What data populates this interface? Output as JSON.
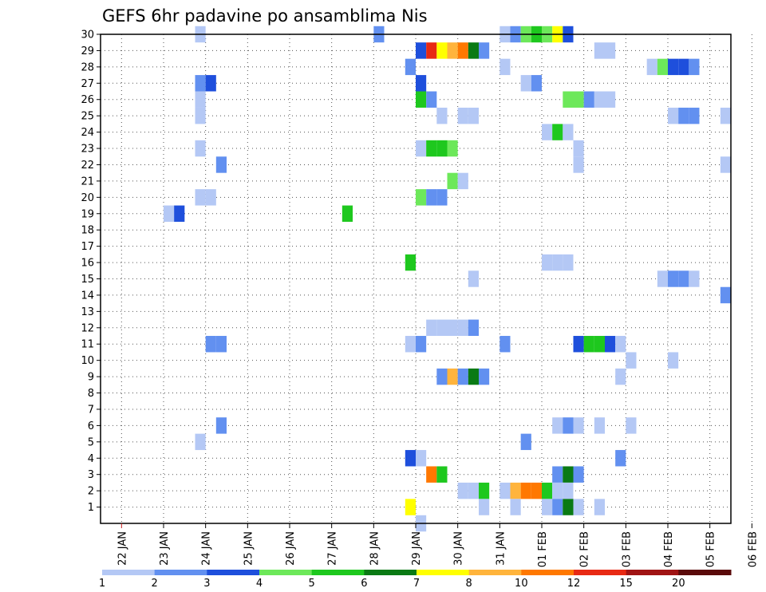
{
  "chart_data": {
    "type": "heatmap",
    "title": "GEFS 6hr padavine po ansamblima Nis",
    "y_ticks": [
      "1",
      "2",
      "3",
      "4",
      "5",
      "6",
      "7",
      "8",
      "9",
      "10",
      "11",
      "12",
      "13",
      "14",
      "15",
      "16",
      "17",
      "18",
      "19",
      "20",
      "21",
      "22",
      "23",
      "24",
      "25",
      "26",
      "27",
      "28",
      "29",
      "30"
    ],
    "ylim": [
      0,
      30
    ],
    "x_ticks": [
      "22 JAN",
      "23 JAN",
      "24 JAN",
      "25 JAN",
      "26 JAN",
      "27 JAN",
      "28 JAN",
      "29 JAN",
      "30 JAN",
      "31 JAN",
      "01 FEB",
      "02 FEB",
      "03 FEB",
      "04 FEB",
      "05 FEB",
      "06 FEB"
    ],
    "x_step_hours": 6,
    "xlim_steps": [
      0,
      60
    ],
    "grid": true,
    "colorbar": {
      "placement": "bottom",
      "labels": [
        "1",
        "2",
        "3",
        "4",
        "5",
        "6",
        "7",
        "8",
        "10",
        "12",
        "15",
        "20"
      ],
      "colors": [
        "#b4c8f5",
        "#6290f0",
        "#1e4fdc",
        "#6de85a",
        "#1ec81e",
        "#0a7a14",
        "#ffff00",
        "#ffb43c",
        "#ff7800",
        "#e82a14",
        "#a01414",
        "#5a0a0a"
      ]
    },
    "cells": [
      [
        30,
        9.5,
        1
      ],
      [
        30,
        26.5,
        2
      ],
      [
        30,
        38.5,
        1
      ],
      [
        30,
        39.5,
        2
      ],
      [
        30,
        40.5,
        4
      ],
      [
        30,
        41.5,
        5
      ],
      [
        30,
        42.5,
        4
      ],
      [
        30,
        43.5,
        7
      ],
      [
        30,
        44.5,
        3
      ],
      [
        29,
        30.5,
        3
      ],
      [
        29,
        31.5,
        10
      ],
      [
        29,
        32.5,
        7
      ],
      [
        29,
        33.5,
        8
      ],
      [
        29,
        34.5,
        9
      ],
      [
        29,
        35.5,
        6
      ],
      [
        29,
        36.5,
        2
      ],
      [
        29,
        47.5,
        1
      ],
      [
        29,
        48.5,
        1
      ],
      [
        28,
        29.5,
        2
      ],
      [
        28,
        38.5,
        1
      ],
      [
        28,
        52.5,
        1
      ],
      [
        28,
        53.5,
        4
      ],
      [
        28,
        54.5,
        3
      ],
      [
        28,
        55.5,
        3
      ],
      [
        28,
        56.5,
        2
      ],
      [
        27,
        9.5,
        2
      ],
      [
        27,
        10.5,
        3
      ],
      [
        27,
        30.5,
        3
      ],
      [
        27,
        40.5,
        1
      ],
      [
        27,
        41.5,
        2
      ],
      [
        26,
        9.5,
        1
      ],
      [
        26,
        30.5,
        5
      ],
      [
        26,
        31.5,
        2
      ],
      [
        26,
        44.5,
        4
      ],
      [
        26,
        45.5,
        4
      ],
      [
        26,
        46.5,
        2
      ],
      [
        26,
        47.5,
        1
      ],
      [
        26,
        48.5,
        1
      ],
      [
        25,
        9.5,
        1
      ],
      [
        25,
        32.5,
        1
      ],
      [
        25,
        34.5,
        1
      ],
      [
        25,
        35.5,
        1
      ],
      [
        25,
        54.5,
        1
      ],
      [
        25,
        55.5,
        2
      ],
      [
        25,
        56.5,
        2
      ],
      [
        25,
        59.5,
        1
      ],
      [
        24,
        42.5,
        1
      ],
      [
        24,
        43.5,
        5
      ],
      [
        24,
        44.5,
        1
      ],
      [
        23,
        9.5,
        1
      ],
      [
        23,
        30.5,
        1
      ],
      [
        23,
        31.5,
        5
      ],
      [
        23,
        32.5,
        5
      ],
      [
        23,
        33.5,
        4
      ],
      [
        23,
        45.5,
        1
      ],
      [
        22,
        11.5,
        2
      ],
      [
        22,
        45.5,
        1
      ],
      [
        22,
        59.5,
        1
      ],
      [
        21,
        33.5,
        4
      ],
      [
        21,
        34.5,
        1
      ],
      [
        20,
        9.5,
        1
      ],
      [
        20,
        10.5,
        1
      ],
      [
        20,
        30.5,
        4
      ],
      [
        20,
        31.5,
        2
      ],
      [
        20,
        32.5,
        2
      ],
      [
        19,
        6.5,
        1
      ],
      [
        19,
        7.5,
        3
      ],
      [
        19,
        23.5,
        5
      ],
      [
        16,
        29.5,
        5
      ],
      [
        16,
        42.5,
        1
      ],
      [
        16,
        43.5,
        1
      ],
      [
        16,
        44.5,
        1
      ],
      [
        15,
        35.5,
        1
      ],
      [
        15,
        53.5,
        1
      ],
      [
        15,
        54.5,
        2
      ],
      [
        15,
        55.5,
        2
      ],
      [
        15,
        56.5,
        1
      ],
      [
        14,
        59.5,
        2
      ],
      [
        12,
        31.5,
        1
      ],
      [
        12,
        32.5,
        1
      ],
      [
        12,
        33.5,
        1
      ],
      [
        12,
        34.5,
        1
      ],
      [
        12,
        35.5,
        2
      ],
      [
        11,
        10.5,
        2
      ],
      [
        11,
        11.5,
        2
      ],
      [
        11,
        29.5,
        1
      ],
      [
        11,
        30.5,
        2
      ],
      [
        11,
        38.5,
        2
      ],
      [
        11,
        45.5,
        3
      ],
      [
        11,
        46.5,
        5
      ],
      [
        11,
        47.5,
        5
      ],
      [
        11,
        48.5,
        3
      ],
      [
        11,
        49.5,
        1
      ],
      [
        10,
        50.5,
        1
      ],
      [
        10,
        54.5,
        1
      ],
      [
        9,
        32.5,
        2
      ],
      [
        9,
        33.5,
        8
      ],
      [
        9,
        34.5,
        2
      ],
      [
        9,
        35.5,
        6
      ],
      [
        9,
        36.5,
        2
      ],
      [
        9,
        49.5,
        1
      ],
      [
        6,
        11.5,
        2
      ],
      [
        6,
        43.5,
        1
      ],
      [
        6,
        44.5,
        2
      ],
      [
        6,
        45.5,
        1
      ],
      [
        6,
        47.5,
        1
      ],
      [
        6,
        50.5,
        1
      ],
      [
        5,
        9.5,
        1
      ],
      [
        5,
        40.5,
        2
      ],
      [
        4,
        29.5,
        3
      ],
      [
        4,
        30.5,
        1
      ],
      [
        4,
        49.5,
        2
      ],
      [
        3,
        31.5,
        9
      ],
      [
        3,
        32.5,
        5
      ],
      [
        3,
        43.5,
        2
      ],
      [
        3,
        44.5,
        6
      ],
      [
        3,
        45.5,
        2
      ],
      [
        2,
        34.5,
        1
      ],
      [
        2,
        35.5,
        1
      ],
      [
        2,
        36.5,
        5
      ],
      [
        2,
        38.5,
        1
      ],
      [
        2,
        39.5,
        8
      ],
      [
        2,
        40.5,
        9
      ],
      [
        2,
        41.5,
        9
      ],
      [
        2,
        42.5,
        5
      ],
      [
        2,
        43.5,
        1
      ],
      [
        2,
        44.5,
        1
      ],
      [
        1,
        29.5,
        7
      ],
      [
        1,
        36.5,
        1
      ],
      [
        1,
        39.5,
        1
      ],
      [
        1,
        42.5,
        1
      ],
      [
        1,
        43.5,
        2
      ],
      [
        1,
        44.5,
        6
      ],
      [
        1,
        45.5,
        1
      ],
      [
        1,
        47.5,
        1
      ],
      [
        0,
        30.5,
        1
      ]
    ]
  }
}
